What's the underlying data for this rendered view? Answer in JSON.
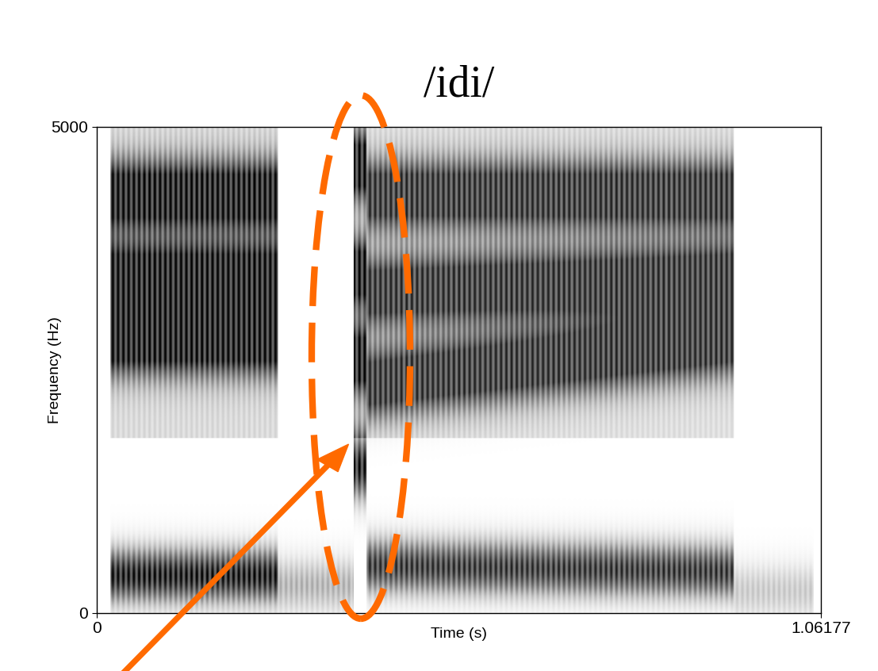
{
  "chart_data": {
    "type": "spectrogram",
    "title": "/idi/",
    "x_label": "Time (s)",
    "y_label": "Frequency (Hz)",
    "xlim": [
      0,
      1.06177
    ],
    "ylim": [
      0,
      5000
    ],
    "xticks": [
      0,
      1.06177
    ],
    "yticks": [
      0,
      5000
    ],
    "segments": [
      {
        "t": [
          0.02,
          0.265
        ],
        "level": 1.0,
        "formants": [
          [
            380,
            380
          ],
          [
            2800,
            2800
          ],
          [
            3450,
            3450
          ],
          [
            4300,
            4300
          ]
        ]
      },
      {
        "t": [
          0.265,
          0.376
        ],
        "level": 0.45,
        "formants": [
          [
            280,
            280
          ]
        ]
      },
      {
        "t": [
          0.376,
          0.395
        ],
        "level": 1.0,
        "formants": [
          [
            1500,
            1500
          ],
          [
            2600,
            2600
          ],
          [
            3500,
            3500
          ],
          [
            4600,
            4600
          ]
        ]
      },
      {
        "t": [
          0.395,
          0.934
        ],
        "level": 0.9,
        "formants": [
          [
            480,
            420
          ],
          [
            2350,
            2800
          ],
          [
            3300,
            3450
          ],
          [
            4300,
            4300
          ]
        ]
      },
      {
        "t": [
          0.934,
          1.05
        ],
        "level": 0.35,
        "formants": [
          [
            220,
            220
          ]
        ]
      }
    ]
  }
}
